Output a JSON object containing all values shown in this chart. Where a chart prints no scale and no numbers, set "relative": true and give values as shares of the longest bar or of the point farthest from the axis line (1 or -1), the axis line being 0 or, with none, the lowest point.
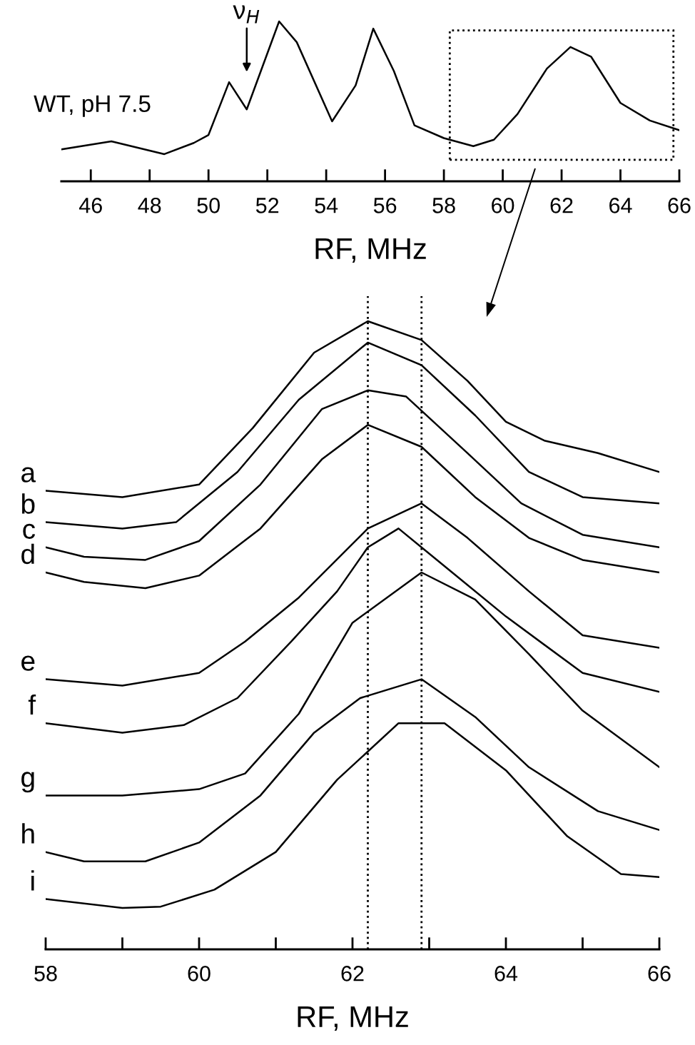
{
  "chart_data": [
    {
      "type": "line",
      "relative": true,
      "xlabel": "RF, MHz",
      "xlim": [
        45,
        66
      ],
      "xticks": [
        46,
        48,
        50,
        52,
        54,
        56,
        58,
        60,
        62,
        64,
        66
      ],
      "grid": false,
      "legend": false,
      "tick_labels": "x",
      "annotations": [
        {
          "text": "ν$_{H}$",
          "x": 51.3,
          "y": 0.56
        }
      ],
      "series": [
        {
          "name": "WT, pH 7.5",
          "color": "#000000",
          "x": [
            45.0,
            46.7,
            48.5,
            49.5,
            50.0,
            50.7,
            51.3,
            52.4,
            53.0,
            54.2,
            55.0,
            55.6,
            56.3,
            57.0,
            58.0,
            59.0,
            59.7,
            60.5,
            61.5,
            62.3,
            63.0,
            64.0,
            65.0,
            66.0
          ],
          "values": [
            0.2,
            0.25,
            0.17,
            0.24,
            0.29,
            0.62,
            0.45,
            1.0,
            0.87,
            0.375,
            0.6,
            0.955,
            0.69,
            0.35,
            0.27,
            0.22,
            0.26,
            0.42,
            0.705,
            0.84,
            0.78,
            0.49,
            0.38,
            0.32
          ]
        }
      ]
    },
    {
      "type": "line",
      "relative": true,
      "xlabel": "RF, MHz",
      "xlim": [
        58,
        66
      ],
      "xticks": [
        58,
        {
          "value": 59,
          "label": null
        },
        60,
        {
          "value": 61,
          "label": null
        },
        62,
        {
          "value": 63,
          "label": null
        },
        64,
        {
          "value": 65,
          "label": null
        },
        66
      ],
      "grid": false,
      "legend": false,
      "tick_labels": "x",
      "ref_lines": [
        {
          "axis": "x",
          "value": 62.2,
          "color": "#000000",
          "line_style": "dotted"
        },
        {
          "axis": "x",
          "value": 62.9,
          "color": "#000000",
          "line_style": "dotted"
        }
      ],
      "series": [
        {
          "name": "a",
          "color": "#000000",
          "x": [
            58.0,
            59.0,
            60.0,
            60.7,
            61.5,
            62.2,
            62.9,
            63.5,
            64.0,
            64.5,
            65.2,
            66.0
          ],
          "values": [
            0.73,
            0.72,
            0.74,
            0.83,
            0.95,
            1.0,
            0.97,
            0.905,
            0.84,
            0.81,
            0.79,
            0.76
          ]
        },
        {
          "name": "b",
          "color": "#000000",
          "x": [
            58.0,
            59.0,
            59.7,
            60.5,
            61.3,
            62.2,
            62.9,
            63.6,
            64.3,
            65.0,
            66.0
          ],
          "values": [
            0.68,
            0.67,
            0.68,
            0.76,
            0.875,
            0.966,
            0.93,
            0.85,
            0.76,
            0.72,
            0.71
          ]
        },
        {
          "name": "c",
          "color": "#000000",
          "x": [
            58.0,
            58.5,
            59.3,
            60.0,
            60.8,
            61.6,
            62.2,
            62.7,
            63.5,
            64.2,
            65.0,
            66.0
          ],
          "values": [
            0.64,
            0.625,
            0.62,
            0.65,
            0.74,
            0.86,
            0.89,
            0.88,
            0.79,
            0.71,
            0.66,
            0.64
          ]
        },
        {
          "name": "d",
          "color": "#000000",
          "x": [
            58.0,
            58.5,
            59.3,
            60.0,
            60.8,
            61.6,
            62.2,
            62.9,
            63.6,
            64.3,
            65.0,
            66.0
          ],
          "values": [
            0.6,
            0.585,
            0.575,
            0.595,
            0.67,
            0.78,
            0.835,
            0.8,
            0.72,
            0.655,
            0.62,
            0.6
          ]
        },
        {
          "name": "e",
          "color": "#000000",
          "x": [
            58.0,
            59.0,
            60.0,
            60.6,
            61.3,
            62.2,
            62.9,
            63.5,
            64.3,
            65.0,
            66.0
          ],
          "values": [
            0.43,
            0.42,
            0.44,
            0.49,
            0.56,
            0.67,
            0.71,
            0.655,
            0.57,
            0.5,
            0.48
          ]
        },
        {
          "name": "f",
          "color": "#000000",
          "x": [
            58.0,
            59.0,
            59.8,
            60.5,
            61.2,
            61.8,
            62.2,
            62.6,
            63.3,
            64.0,
            65.0,
            66.0
          ],
          "values": [
            0.36,
            0.345,
            0.357,
            0.4,
            0.49,
            0.57,
            0.64,
            0.67,
            0.6,
            0.53,
            0.44,
            0.41
          ]
        },
        {
          "name": "g",
          "color": "#000000",
          "x": [
            58.0,
            59.0,
            60.0,
            60.6,
            61.3,
            62.0,
            62.9,
            63.6,
            64.3,
            65.0,
            66.0
          ],
          "values": [
            0.245,
            0.245,
            0.255,
            0.28,
            0.375,
            0.52,
            0.6,
            0.557,
            0.47,
            0.38,
            0.29
          ]
        },
        {
          "name": "h",
          "color": "#000000",
          "x": [
            58.0,
            58.5,
            59.3,
            60.0,
            60.8,
            61.5,
            62.1,
            62.9,
            63.6,
            64.3,
            65.2,
            66.0
          ],
          "values": [
            0.155,
            0.14,
            0.14,
            0.17,
            0.245,
            0.345,
            0.4,
            0.43,
            0.37,
            0.29,
            0.22,
            0.19
          ]
        },
        {
          "name": "i",
          "color": "#000000",
          "x": [
            58.0,
            59.0,
            59.5,
            60.2,
            61.0,
            61.8,
            62.6,
            63.2,
            64.0,
            64.8,
            65.5,
            66.0
          ],
          "values": [
            0.08,
            0.066,
            0.068,
            0.095,
            0.155,
            0.27,
            0.36,
            0.36,
            0.285,
            0.18,
            0.12,
            0.115
          ]
        }
      ]
    }
  ]
}
